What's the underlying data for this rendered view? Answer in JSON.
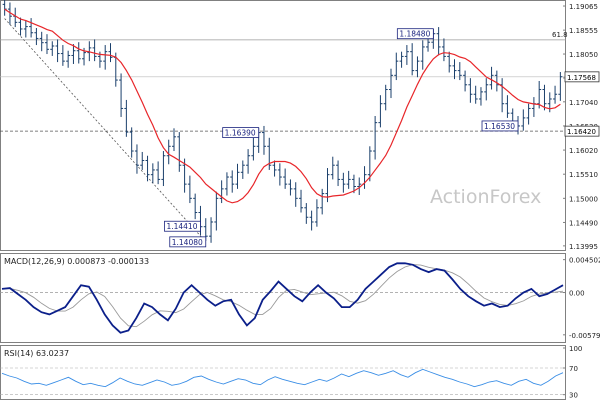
{
  "watermark": "ActionForex",
  "colors": {
    "candle": "#1a3f6b",
    "ma": "#e8262a",
    "macd": "#0b1f8a",
    "signal": "#9a9a9a",
    "rsi": "#3a8ee6",
    "label_border": "#1a237e",
    "grid": "#9a9a9a",
    "text": "#222222"
  },
  "chart_data": [
    {
      "type": "candlestick",
      "name": "price",
      "yaxis_ticks": [
        1.19065,
        1.18555,
        1.1805,
        1.17545,
        1.1704,
        1.1653,
        1.1602,
        1.1551,
        1.15,
        1.1449,
        1.13995
      ],
      "ylim": [
        1.1395,
        1.1915
      ],
      "current_price": 1.17568,
      "current_price_label": "1.17568",
      "support_level": 1.1642,
      "support_label": "1.16420",
      "fib_level": 1.1835,
      "fib_label": "61.8",
      "annotations": [
        {
          "label": "1.18480",
          "value": 1.1848
        },
        {
          "label": "1.16390",
          "value": 1.1639
        },
        {
          "label": "1.16530",
          "value": 1.1653
        },
        {
          "label": "1.14410",
          "value": 1.1441
        },
        {
          "label": "1.14080",
          "value": 1.1408
        }
      ],
      "close": [
        1.19,
        1.1885,
        1.1872,
        1.1858,
        1.1863,
        1.185,
        1.1838,
        1.1829,
        1.1815,
        1.1822,
        1.1806,
        1.179,
        1.1802,
        1.1812,
        1.1795,
        1.1808,
        1.1818,
        1.18,
        1.179,
        1.181,
        1.1798,
        1.175,
        1.169,
        1.164,
        1.16,
        1.157,
        1.158,
        1.155,
        1.156,
        1.154,
        1.159,
        1.161,
        1.163,
        1.157,
        1.153,
        1.15,
        1.147,
        1.144,
        1.142,
        1.145,
        1.15,
        1.152,
        1.1545,
        1.153,
        1.1555,
        1.157,
        1.159,
        1.161,
        1.1639,
        1.161,
        1.157,
        1.156,
        1.1545,
        1.153,
        1.152,
        1.15,
        1.148,
        1.146,
        1.145,
        1.148,
        1.151,
        1.155,
        1.157,
        1.154,
        1.153,
        1.154,
        1.1525,
        1.153,
        1.155,
        1.16,
        1.166,
        1.17,
        1.173,
        1.176,
        1.179,
        1.18,
        1.181,
        1.177,
        1.179,
        1.182,
        1.183,
        1.1848,
        1.182,
        1.18,
        1.178,
        1.177,
        1.176,
        1.174,
        1.172,
        1.171,
        1.1725,
        1.174,
        1.176,
        1.174,
        1.17,
        1.168,
        1.166,
        1.1653,
        1.167,
        1.169,
        1.17,
        1.173,
        1.17,
        1.171,
        1.172,
        1.1757
      ]
    },
    {
      "type": "line",
      "name": "MACD(12,26,9)",
      "label": "MACD(12,26,9) 0.000873 -0.000133",
      "yaxis_ticks": [
        0.004502,
        0.0,
        -0.005791
      ],
      "ytick_labels": [
        "0.004502",
        "0.00",
        "-0.005791"
      ],
      "ylim": [
        -0.0065,
        0.005
      ],
      "series": [
        {
          "name": "MACD",
          "values": [
            0.0005,
            0.0006,
            -0.0002,
            -0.001,
            -0.002,
            -0.0027,
            -0.003,
            -0.0025,
            -0.002,
            -0.0005,
            0.001,
            0.0008,
            -0.001,
            -0.003,
            -0.0045,
            -0.0055,
            -0.0052,
            -0.0035,
            -0.0015,
            -0.002,
            -0.003,
            -0.0038,
            -0.0022,
            0.0,
            0.001,
            0.0,
            -0.001,
            -0.0018,
            -0.0012,
            -0.001,
            -0.003,
            -0.0045,
            -0.0035,
            -0.001,
            0.0002,
            0.0015,
            0.0005,
            -0.0005,
            -0.0012,
            0.0,
            0.001,
            0.0,
            -0.0008,
            -0.002,
            -0.002,
            -0.001,
            0.0005,
            0.0015,
            0.0025,
            0.0035,
            0.004,
            0.004,
            0.0038,
            0.0032,
            0.0028,
            0.0032,
            0.003,
            0.0018,
            0.0005,
            -0.0005,
            -0.0012,
            -0.0018,
            -0.0015,
            -0.002,
            -0.0018,
            -0.0008,
            0.0,
            0.0005,
            -0.0005,
            -0.0002,
            0.0004,
            0.001
          ]
        }
      ]
    },
    {
      "type": "line",
      "name": "RSI(14)",
      "label": "RSI(14) 63.0237",
      "yaxis_ticks": [
        100,
        70,
        30
      ],
      "ylim": [
        25,
        100
      ],
      "series": [
        {
          "name": "RSI",
          "values": [
            62,
            58,
            55,
            50,
            46,
            47,
            44,
            48,
            52,
            56,
            50,
            45,
            47,
            44,
            42,
            48,
            55,
            50,
            46,
            44,
            48,
            52,
            49,
            44,
            46,
            50,
            56,
            58,
            53,
            49,
            46,
            50,
            54,
            52,
            47,
            45,
            52,
            57,
            53,
            50,
            47,
            45,
            49,
            53,
            50,
            55,
            61,
            57,
            62,
            66,
            63,
            59,
            62,
            66,
            60,
            56,
            63,
            68,
            64,
            60,
            56,
            53,
            49,
            46,
            42,
            45,
            49,
            51,
            47,
            44,
            50,
            53,
            47,
            44,
            50,
            58,
            63
          ]
        }
      ]
    }
  ]
}
